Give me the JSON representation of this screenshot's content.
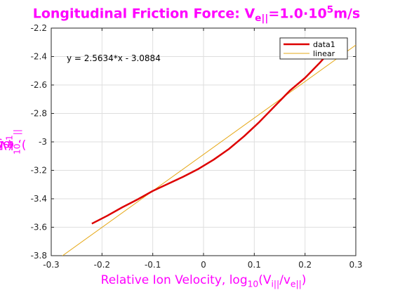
{
  "title": {
    "prefix": "Longitudinal Friction Force: V",
    "sub": "e||",
    "mid": "=1.0·10",
    "sup": "5",
    "suffix": "m/s"
  },
  "xlabel": {
    "prefix": "Relative Ion Velocity, log",
    "sub1": "10",
    "mid": "(V",
    "sub2": "i||",
    "mid2": "/v",
    "sub3": "e||",
    "suffix": ")"
  },
  "ylabel": {
    "prefix": "log",
    "sub1": "10",
    "mid": "(-F",
    "sup": "-1",
    "sub2": "||",
    "suffix": "), eV/m"
  },
  "chart_data": {
    "type": "line",
    "xlim": [
      -0.3,
      0.3
    ],
    "ylim": [
      -3.8,
      -2.2
    ],
    "xticks": [
      -0.3,
      -0.2,
      -0.1,
      0,
      0.1,
      0.2,
      0.3
    ],
    "xtick_labels": [
      "-0.3",
      "-0.2",
      "-0.1",
      "0",
      "0.1",
      "0.2",
      "0.3"
    ],
    "yticks": [
      -3.8,
      -3.6,
      -3.4,
      -3.2,
      -3,
      -2.8,
      -2.6,
      -2.4,
      -2.2
    ],
    "ytick_labels": [
      "-3.8",
      "-3.6",
      "-3.4",
      "-3.2",
      "-3",
      "-2.8",
      "-2.6",
      "-2.4",
      "-2.2"
    ],
    "grid": true,
    "legend_position": "top-right",
    "annotation": "y = 2.5634*x - 3.0884",
    "series": [
      {
        "name": "data1",
        "color": "#dd0000",
        "x": [
          -0.22,
          -0.19,
          -0.16,
          -0.13,
          -0.1,
          -0.07,
          -0.04,
          -0.01,
          0.02,
          0.05,
          0.08,
          0.11,
          0.14,
          0.17,
          0.2,
          0.23,
          0.25
        ],
        "y": [
          -3.575,
          -3.52,
          -3.46,
          -3.405,
          -3.345,
          -3.295,
          -3.245,
          -3.19,
          -3.125,
          -3.05,
          -2.96,
          -2.86,
          -2.75,
          -2.64,
          -2.55,
          -2.44,
          -2.36
        ]
      },
      {
        "name": "linear",
        "color": "#e6a817",
        "slope": 2.5634,
        "intercept": -3.0884,
        "x": [
          -0.3,
          0.3
        ]
      }
    ]
  }
}
